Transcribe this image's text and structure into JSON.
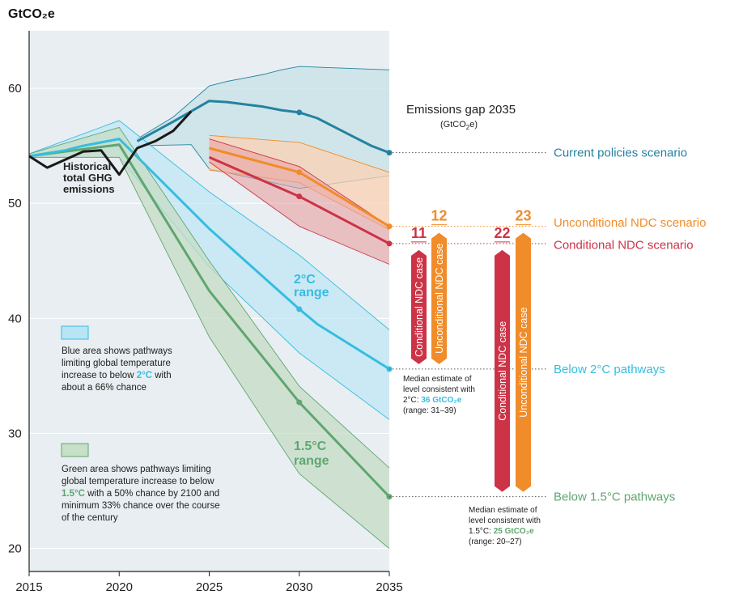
{
  "chart_data": {
    "type": "line",
    "ylabel": "GtCO₂e",
    "x_ticks": [
      2015,
      2020,
      2025,
      2030,
      2035
    ],
    "y_ticks": [
      20,
      30,
      40,
      50,
      60
    ],
    "xlim": [
      2015,
      2035
    ],
    "ylim": [
      18,
      65
    ],
    "grid": true,
    "colors": {
      "historical": "#1a1a1a",
      "current": "#2383a0",
      "unconditional": "#f08c2a",
      "conditional": "#cc3347",
      "two_c": "#35bde0",
      "one_five_c": "#5fa670",
      "plot_bg": "#e8eef1"
    },
    "historical": {
      "label_lines": [
        "Historical",
        "total GHG",
        "emissions"
      ],
      "x": [
        2015,
        2016,
        2017,
        2018,
        2019,
        2020,
        2021,
        2022,
        2023,
        2024
      ],
      "y": [
        54.1,
        53.1,
        53.8,
        54.5,
        54.6,
        52.5,
        54.8,
        55.4,
        56.3,
        58.0
      ]
    },
    "series": [
      {
        "key": "current",
        "name": "Current policies scenario",
        "x": [
          2021,
          2023,
          2025,
          2026,
          2027,
          2028,
          2029,
          2030,
          2031,
          2032,
          2033,
          2034,
          2035
        ],
        "y": [
          55.4,
          57.1,
          58.9,
          58.8,
          58.6,
          58.4,
          58.1,
          57.9,
          57.4,
          56.6,
          55.8,
          55.0,
          54.4
        ],
        "band_upper_x": [
          2021,
          2023,
          2025,
          2026,
          2027,
          2028,
          2029,
          2030,
          2035
        ],
        "band_upper_y": [
          55.6,
          57.5,
          60.2,
          60.6,
          60.9,
          61.2,
          61.6,
          61.9,
          61.6
        ],
        "band_lower_x": [
          2021,
          2024,
          2025,
          2030,
          2035
        ],
        "band_lower_y": [
          55.0,
          55.1,
          53.0,
          51.3,
          52.4
        ],
        "marker_x": [
          2030,
          2035
        ]
      },
      {
        "key": "unconditional",
        "name": "Unconditional NDC scenario",
        "x": [
          2025,
          2030,
          2035
        ],
        "y": [
          54.8,
          52.7,
          48.0
        ],
        "band_upper_x": [
          2025,
          2030,
          2035
        ],
        "band_upper_y": [
          55.9,
          55.3,
          52.7
        ],
        "band_lower_x": [
          2025,
          2030,
          2035
        ],
        "band_lower_y": [
          52.9,
          51.8,
          47.7
        ],
        "marker_x": [
          2030,
          2035
        ]
      },
      {
        "key": "conditional",
        "name": "Conditional NDC scenario",
        "x": [
          2025,
          2030,
          2035
        ],
        "y": [
          54.0,
          50.6,
          46.5
        ],
        "band_upper_x": [
          2025,
          2030,
          2035
        ],
        "band_upper_y": [
          55.6,
          53.2,
          48.0
        ],
        "band_lower_x": [
          2025,
          2030,
          2035
        ],
        "band_lower_y": [
          53.6,
          48.0,
          44.7
        ],
        "marker_x": [
          2030,
          2035
        ]
      },
      {
        "key": "two_c",
        "name": "Below 2°C pathways",
        "x": [
          2015,
          2017,
          2018,
          2020,
          2025,
          2030,
          2031,
          2035
        ],
        "y": [
          54.1,
          54.6,
          55.0,
          55.6,
          47.8,
          40.8,
          39.5,
          35.6
        ],
        "band_upper_x": [
          2015,
          2020,
          2025,
          2030,
          2035
        ],
        "band_upper_y": [
          54.3,
          57.2,
          51.0,
          45.5,
          39.0
        ],
        "band_lower_x": [
          2015,
          2020,
          2025,
          2030,
          2035
        ],
        "band_lower_y": [
          54.0,
          54.0,
          44.5,
          37.0,
          31.2
        ],
        "marker_x": [
          2030,
          2035
        ]
      },
      {
        "key": "one_five_c",
        "name": "Below 1.5°C pathways",
        "x": [
          2015,
          2020,
          2025,
          2030,
          2035
        ],
        "y": [
          54.1,
          55.1,
          42.4,
          32.7,
          24.5
        ],
        "band_upper_x": [
          2015,
          2020,
          2025,
          2030,
          2035
        ],
        "band_upper_y": [
          54.3,
          56.6,
          45.0,
          34.1,
          27.0
        ],
        "band_lower_x": [
          2015,
          2020,
          2025,
          2030,
          2035
        ],
        "band_lower_y": [
          54.0,
          54.0,
          38.4,
          26.5,
          20.0
        ],
        "marker_x": [
          2030,
          2035
        ]
      }
    ],
    "range_labels": {
      "two_c": [
        "2°C",
        "range"
      ],
      "one_five_c": [
        "1.5°C",
        "range"
      ]
    },
    "legend": {
      "blue": {
        "line1": "Blue area shows pathways",
        "line2": "limiting global temperature",
        "line3_pre": "increase to below ",
        "line3_em": "2°C",
        "line3_post": " with",
        "line4": "about a 66% chance"
      },
      "green": {
        "line1": "Green area shows pathways limiting",
        "line2": "global temperature increase to below",
        "line3_em": "1.5°C",
        "line3_post": " with a 50% chance by 2100 and",
        "line4": "minimum 33% chance over the course",
        "line5": "of the century"
      }
    },
    "gap": {
      "title": "Emissions gap 2035",
      "unit_pre": "(GtCO",
      "unit_sub": "2",
      "unit_post": "e)",
      "bars": [
        {
          "key": "g1",
          "value": 11,
          "label": "Conditional NDC case",
          "color": "#cc3347",
          "from": 46.5,
          "to": 35.6
        },
        {
          "key": "g2",
          "value": 12,
          "label": "Unconditional NDC case",
          "color": "#f08c2a",
          "from": 48.0,
          "to": 35.6
        },
        {
          "key": "g3",
          "value": 22,
          "label": "Conditional NDC case",
          "color": "#cc3347",
          "from": 46.5,
          "to": 24.5
        },
        {
          "key": "g4",
          "value": 23,
          "label": "Unconditional NDC case",
          "color": "#f08c2a",
          "from": 48.0,
          "to": 24.5
        }
      ],
      "median2": {
        "line1": "Median estimate of",
        "line2": "level consistent with",
        "line3_pre": "2°C: ",
        "line3_em": "36 GtCO₂e",
        "line4": "(range: 31–39)"
      },
      "median15": {
        "line1": "Median estimate of",
        "line2": "level consistent with",
        "line3_pre": "1.5°C: ",
        "line3_em": "25 GtCO₂e",
        "line4": "(range: 20–27)"
      }
    }
  }
}
